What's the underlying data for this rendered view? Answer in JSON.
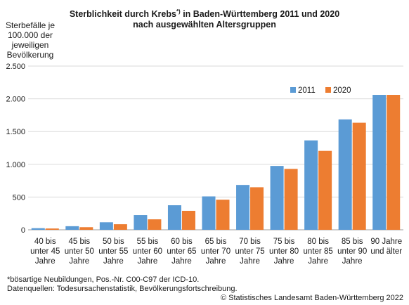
{
  "title_line1": "Sterblichkeit durch Krebs",
  "title_sup": "*)",
  "title_line1_rest": " in Baden-Württemberg 2011 und 2020",
  "title_line2": "nach ausgewählten Altersgruppen",
  "footnote1": "*bösartige Neubildungen, Pos.-Nr. C00-C97 der ICD-10.",
  "footnote2": "Datenquellen: Todesursachenstatistik, Bevölkerungsfortschreibung.",
  "copyright": "© Statistisches Landesamt Baden-Württemberg 2022",
  "colors": {
    "series_2011": "#5b9bd5",
    "series_2020": "#ed7d31",
    "grid": "#d9d9d9",
    "axis": "#9e9e9e"
  },
  "chart_data": {
    "type": "bar",
    "title": "Sterblichkeit durch Krebs*) in Baden-Württemberg 2011 und 2020 nach ausgewählten Altersgruppen",
    "ylabel": "Sterbefälle je 100.000 der jeweiligen Bevölkerung",
    "xlabel": "",
    "ylim": [
      0,
      2500
    ],
    "yticks": [
      0,
      500,
      1000,
      1500,
      2000,
      2500
    ],
    "ytick_labels": [
      "0",
      "500",
      "1.000",
      "1.500",
      "2.000",
      "2.500"
    ],
    "grid": true,
    "legend_position": "top-right",
    "categories": [
      [
        "40 bis",
        "unter 45",
        "Jahre"
      ],
      [
        "45 bis",
        "unter 50",
        "Jahre"
      ],
      [
        "50 bis",
        "unter 55",
        "Jahre"
      ],
      [
        "55 bis",
        "unter 60",
        "Jahre"
      ],
      [
        "60 bis",
        "unter 65",
        "Jahre"
      ],
      [
        "65 bis",
        "unter 70",
        "Jahre"
      ],
      [
        "70 bis",
        "unter 75",
        "Jahre"
      ],
      [
        "75 bis",
        "unter 80",
        "Jahre"
      ],
      [
        "80 bis",
        "unter 85",
        "Jahre"
      ],
      [
        "85 bis",
        "unter 90",
        "Jahre"
      ],
      [
        "90 Jahre",
        "und älter",
        ""
      ]
    ],
    "series": [
      {
        "name": "2011",
        "values": [
          25,
          55,
          115,
          225,
          375,
          510,
          685,
          975,
          1365,
          1685,
          2060
        ]
      },
      {
        "name": "2020",
        "values": [
          20,
          40,
          85,
          160,
          290,
          460,
          650,
          930,
          1205,
          1635,
          2060
        ]
      }
    ]
  }
}
